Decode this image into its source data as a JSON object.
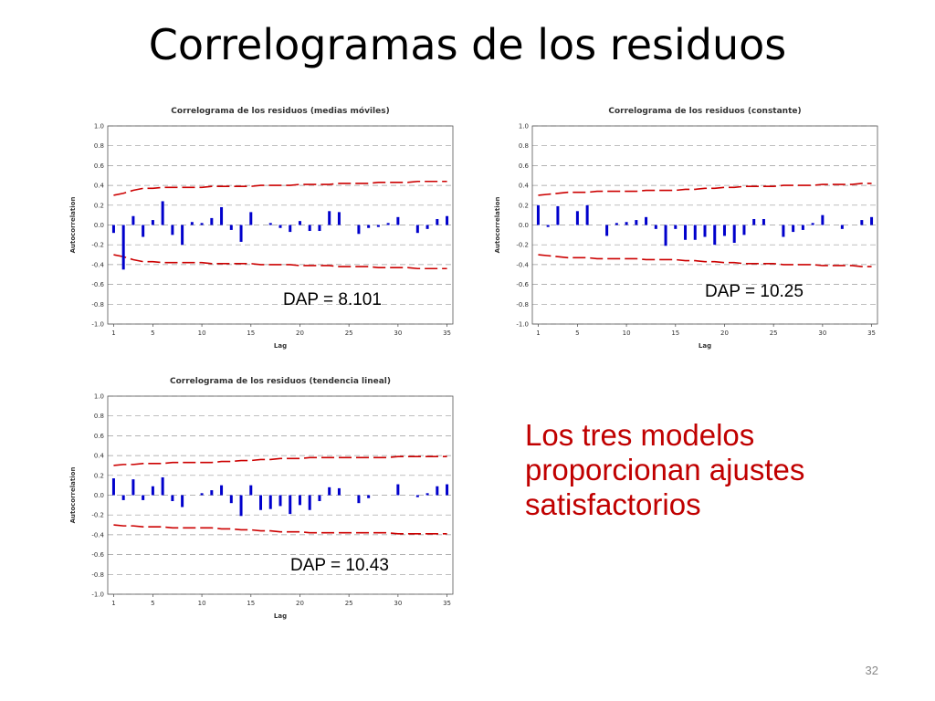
{
  "slide": {
    "title": "Correlogramas de los residuos",
    "note": "Los tres modelos proporcionan ajustes satisfactorios",
    "note_color": "#c00000",
    "page_number": "32"
  },
  "colors": {
    "bar": "#0000cc",
    "band": "#cc0000",
    "grid": "#999999"
  },
  "chart_data": [
    {
      "type": "bar",
      "title": "Correlograma de los residuos (medias móviles)",
      "xlabel": "Lag",
      "ylabel": "Autocorrelation",
      "ylim": [
        -1.0,
        1.0
      ],
      "yticks": [
        "1.0",
        "0.8",
        "0.6",
        "0.4",
        "0.2",
        "0.0",
        "-0.2",
        "-0.4",
        "-0.6",
        "-0.8",
        "-1.0"
      ],
      "xticks": [
        "1",
        "5",
        "10",
        "15",
        "20",
        "25",
        "30",
        "35"
      ],
      "grid": true,
      "annotation": "DAP = 8.101",
      "x": [
        1,
        2,
        3,
        4,
        5,
        6,
        7,
        8,
        9,
        10,
        11,
        12,
        13,
        14,
        15,
        16,
        17,
        18,
        19,
        20,
        21,
        22,
        23,
        24,
        25,
        26,
        27,
        28,
        29,
        30,
        31,
        32,
        33,
        34,
        35
      ],
      "values": [
        -0.08,
        -0.45,
        0.09,
        -0.12,
        0.05,
        0.24,
        -0.1,
        -0.2,
        0.03,
        0.02,
        0.07,
        0.18,
        -0.05,
        -0.17,
        0.13,
        0.0,
        0.02,
        -0.03,
        -0.07,
        0.04,
        -0.06,
        -0.06,
        0.14,
        0.13,
        0.0,
        -0.09,
        -0.03,
        -0.02,
        0.02,
        0.08,
        0.0,
        -0.08,
        -0.04,
        0.06,
        0.09
      ],
      "upper_band": [
        0.3,
        0.32,
        0.35,
        0.37,
        0.37,
        0.38,
        0.38,
        0.38,
        0.38,
        0.38,
        0.39,
        0.39,
        0.39,
        0.39,
        0.39,
        0.4,
        0.4,
        0.4,
        0.4,
        0.41,
        0.41,
        0.41,
        0.41,
        0.42,
        0.42,
        0.42,
        0.42,
        0.43,
        0.43,
        0.43,
        0.43,
        0.44,
        0.44,
        0.44,
        0.44
      ],
      "lower_band": [
        -0.3,
        -0.32,
        -0.35,
        -0.37,
        -0.37,
        -0.38,
        -0.38,
        -0.38,
        -0.38,
        -0.38,
        -0.39,
        -0.39,
        -0.39,
        -0.39,
        -0.39,
        -0.4,
        -0.4,
        -0.4,
        -0.4,
        -0.41,
        -0.41,
        -0.41,
        -0.41,
        -0.42,
        -0.42,
        -0.42,
        -0.42,
        -0.43,
        -0.43,
        -0.43,
        -0.43,
        -0.44,
        -0.44,
        -0.44,
        -0.44
      ]
    },
    {
      "type": "bar",
      "title": "Correlograma de los residuos (constante)",
      "xlabel": "Lag",
      "ylabel": "Autocorrelation",
      "ylim": [
        -1.0,
        1.0
      ],
      "yticks": [
        "1.0",
        "0.8",
        "0.6",
        "0.4",
        "0.2",
        "0.0",
        "-0.2",
        "-0.4",
        "-0.6",
        "-0.8",
        "-1.0"
      ],
      "xticks": [
        "1",
        "5",
        "10",
        "15",
        "20",
        "25",
        "30",
        "35"
      ],
      "grid": true,
      "annotation": "DAP = 10.25",
      "x": [
        1,
        2,
        3,
        4,
        5,
        6,
        7,
        8,
        9,
        10,
        11,
        12,
        13,
        14,
        15,
        16,
        17,
        18,
        19,
        20,
        21,
        22,
        23,
        24,
        25,
        26,
        27,
        28,
        29,
        30,
        31,
        32,
        33,
        34,
        35
      ],
      "values": [
        0.2,
        -0.02,
        0.19,
        0.0,
        0.14,
        0.2,
        0.0,
        -0.11,
        0.02,
        0.03,
        0.05,
        0.08,
        -0.04,
        -0.21,
        -0.04,
        -0.15,
        -0.15,
        -0.12,
        -0.2,
        -0.11,
        -0.18,
        -0.1,
        0.06,
        0.06,
        0.0,
        -0.12,
        -0.07,
        -0.05,
        0.02,
        0.1,
        0.0,
        -0.04,
        0.0,
        0.05,
        0.08
      ],
      "upper_band": [
        0.3,
        0.31,
        0.32,
        0.33,
        0.33,
        0.33,
        0.34,
        0.34,
        0.34,
        0.34,
        0.34,
        0.35,
        0.35,
        0.35,
        0.35,
        0.36,
        0.36,
        0.37,
        0.37,
        0.38,
        0.38,
        0.39,
        0.39,
        0.39,
        0.39,
        0.4,
        0.4,
        0.4,
        0.4,
        0.41,
        0.41,
        0.41,
        0.41,
        0.42,
        0.42
      ],
      "lower_band": [
        -0.3,
        -0.31,
        -0.32,
        -0.33,
        -0.33,
        -0.33,
        -0.34,
        -0.34,
        -0.34,
        -0.34,
        -0.34,
        -0.35,
        -0.35,
        -0.35,
        -0.35,
        -0.36,
        -0.36,
        -0.37,
        -0.37,
        -0.38,
        -0.38,
        -0.39,
        -0.39,
        -0.39,
        -0.39,
        -0.4,
        -0.4,
        -0.4,
        -0.4,
        -0.41,
        -0.41,
        -0.41,
        -0.41,
        -0.42,
        -0.42
      ]
    },
    {
      "type": "bar",
      "title": "Correlograma de los residuos (tendencia lineal)",
      "xlabel": "Lag",
      "ylabel": "Autocorrelation",
      "ylim": [
        -1.0,
        1.0
      ],
      "yticks": [
        "1.0",
        "0.8",
        "0.6",
        "0.4",
        "0.2",
        "0.0",
        "-0.2",
        "-0.4",
        "-0.6",
        "-0.8",
        "-1.0"
      ],
      "xticks": [
        "1",
        "5",
        "10",
        "15",
        "20",
        "25",
        "30",
        "35"
      ],
      "grid": true,
      "annotation": "DAP = 10.43",
      "x": [
        1,
        2,
        3,
        4,
        5,
        6,
        7,
        8,
        9,
        10,
        11,
        12,
        13,
        14,
        15,
        16,
        17,
        18,
        19,
        20,
        21,
        22,
        23,
        24,
        25,
        26,
        27,
        28,
        29,
        30,
        31,
        32,
        33,
        34,
        35
      ],
      "values": [
        0.17,
        -0.05,
        0.16,
        -0.05,
        0.09,
        0.18,
        -0.06,
        -0.12,
        0.0,
        0.02,
        0.05,
        0.1,
        -0.08,
        -0.21,
        0.1,
        -0.15,
        -0.14,
        -0.11,
        -0.19,
        -0.1,
        -0.15,
        -0.06,
        0.08,
        0.07,
        0.0,
        -0.08,
        -0.03,
        0.0,
        0.0,
        0.11,
        0.0,
        -0.02,
        0.02,
        0.09,
        0.11
      ],
      "upper_band": [
        0.3,
        0.31,
        0.31,
        0.32,
        0.32,
        0.32,
        0.33,
        0.33,
        0.33,
        0.33,
        0.33,
        0.34,
        0.34,
        0.35,
        0.35,
        0.36,
        0.36,
        0.37,
        0.37,
        0.37,
        0.38,
        0.38,
        0.38,
        0.38,
        0.38,
        0.38,
        0.38,
        0.38,
        0.38,
        0.39,
        0.39,
        0.39,
        0.39,
        0.39,
        0.39
      ],
      "lower_band": [
        -0.3,
        -0.31,
        -0.31,
        -0.32,
        -0.32,
        -0.32,
        -0.33,
        -0.33,
        -0.33,
        -0.33,
        -0.33,
        -0.34,
        -0.34,
        -0.35,
        -0.35,
        -0.36,
        -0.36,
        -0.37,
        -0.37,
        -0.37,
        -0.38,
        -0.38,
        -0.38,
        -0.38,
        -0.38,
        -0.38,
        -0.38,
        -0.38,
        -0.38,
        -0.39,
        -0.39,
        -0.39,
        -0.39,
        -0.39,
        -0.39
      ]
    }
  ]
}
